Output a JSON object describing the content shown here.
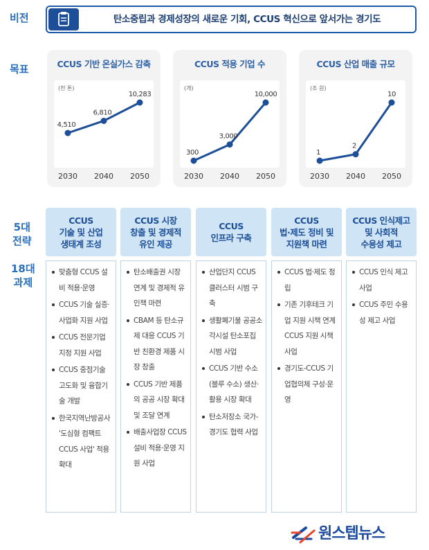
{
  "labels": {
    "vision": "비전",
    "goal": "목표",
    "strategy": [
      "5대",
      "전략"
    ],
    "tasks": [
      "18대",
      "과제"
    ]
  },
  "vision": {
    "text": "탄소중립과 경제성장의 새로운 기회, CCUS 혁신으로 앞서가는 경기도",
    "icon": "clipboard-icon"
  },
  "chart_data": [
    {
      "type": "line",
      "title": "CCUS 기반 온실가스 감축",
      "unit": "(천 톤)",
      "x": [
        2030,
        2040,
        2050
      ],
      "y": [
        4510,
        6810,
        10283
      ],
      "labels": [
        "4,510",
        "6,810",
        "10,283"
      ],
      "color": "#1d4f98"
    },
    {
      "type": "line",
      "title": "CCUS 적용 기업 수",
      "unit": "(개)",
      "x": [
        2030,
        2040,
        2050
      ],
      "y": [
        300,
        3000,
        10000
      ],
      "labels": [
        "300",
        "3,000",
        "10,000"
      ],
      "color": "#1d4f98"
    },
    {
      "type": "line",
      "title": "CCUS 산업 매출 규모",
      "unit": "(조 원)",
      "x": [
        2030,
        2040,
        2050
      ],
      "y": [
        1,
        2,
        10
      ],
      "labels": [
        "1",
        "2",
        "10"
      ],
      "color": "#1d4f98"
    }
  ],
  "strategies": [
    {
      "title": [
        "CCUS",
        "기술 및 산업",
        "생태계 조성"
      ],
      "tasks": [
        "맞춤형 CCUS 설비 적용·운영",
        "CCUS 기술 실증·사업화 지원 사업",
        "CCUS 전문기업 지정 지원 사업",
        "CCUS 중점기술 고도화 및 융합기술 개발",
        "한국지역난방공사 '도심형 컴팩트 CCUS 사업' 적용 확대"
      ]
    },
    {
      "title": [
        "CCUS 시장",
        "창출 및 경제적",
        "유인 제공"
      ],
      "tasks": [
        "탄소배출권 시장 연계 및 경제적 유인책 마련",
        "CBAM 등 탄소규제 대응 CCUS 기반 친환경 제품 시장 창출",
        "CCUS 기반 제품의 공공 시장 확대 및 조달 연계",
        "배출사업장 CCUS 설비 적용·운영 지원 사업"
      ]
    },
    {
      "title": [
        "CCUS",
        "인프라 구축"
      ],
      "tasks": [
        "산업단지 CCUS 클러스터 시범 구축",
        "생활폐기물 공공소각시설 탄소포집 시범 사업",
        "CCUS 기반 수소(블루 수소) 생산·활용 시장 확대",
        "탄소저장소 국가-경기도 협력 사업"
      ]
    },
    {
      "title": [
        "CCUS",
        "법·제도 정비 및",
        "지원책 마련"
      ],
      "tasks": [
        "CCUS 법·제도 정립",
        "기존 기후테크 기업 지원 시책 연계 CCUS 지원 시책 사업",
        "경기도-CCUS 기업협의체 구성·운영"
      ]
    },
    {
      "title": [
        "CCUS 인식제고",
        "및 사회적",
        "수용성 제고"
      ],
      "tasks": [
        "CCUS 인식 제고 사업",
        "CCUS 주민 수용성 제고 사업"
      ]
    }
  ],
  "logo": {
    "text": "원스텝뉴스",
    "icon": "onestep-logo-icon"
  }
}
